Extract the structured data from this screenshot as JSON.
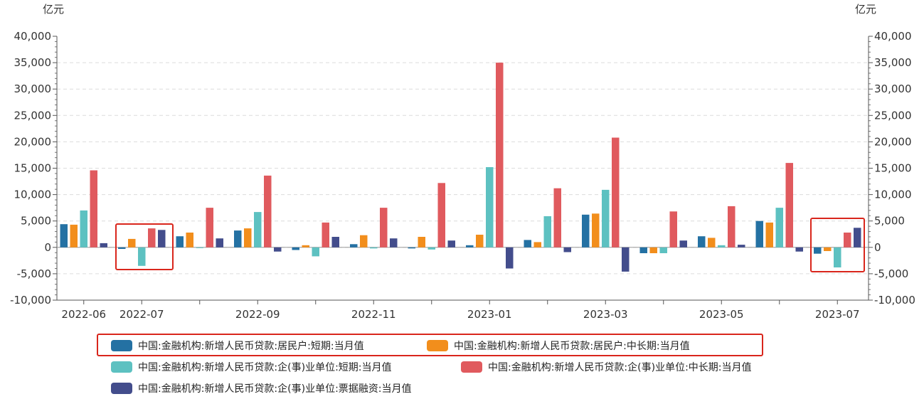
{
  "chart_data": {
    "type": "bar",
    "y_unit_left": "亿元",
    "y_unit_right": "亿元",
    "ylim": [
      -10000,
      40000
    ],
    "y_ticks": [
      "40,000",
      "35,000",
      "30,000",
      "25,000",
      "20,000",
      "15,000",
      "10,000",
      "5,000",
      "0",
      "-5,000",
      "-10,000"
    ],
    "x_tick_labels": [
      "2022-06",
      "2022-07",
      "2022-09",
      "2022-11",
      "2023-01",
      "2023-03",
      "2023-05",
      "2023-07"
    ],
    "categories": [
      "2022-06",
      "2022-07",
      "2022-08",
      "2022-09",
      "2022-10",
      "2022-11",
      "2022-12",
      "2023-01",
      "2023-02",
      "2023-03",
      "2023-04",
      "2023-05",
      "2023-06",
      "2023-07"
    ],
    "grid": "horizontal-dashed",
    "legend_position": "bottom",
    "series": [
      {
        "name": "中国:金融机构:新增人民币贷款:居民户:短期:当月值",
        "color": "#2471a3",
        "values": [
          4400,
          -300,
          2100,
          3200,
          -500,
          600,
          -200,
          400,
          1400,
          6200,
          -1100,
          2100,
          5000,
          -1200
        ]
      },
      {
        "name": "中国:金融机构:新增人民币贷款:居民户:中长期:当月值",
        "color": "#f28e1c",
        "values": [
          4300,
          1600,
          2800,
          3600,
          400,
          2300,
          2000,
          2400,
          1000,
          6400,
          -1100,
          1800,
          4700,
          -700
        ]
      },
      {
        "name": "中国:金融机构:新增人民币贷款:企(事)业单位:短期:当月值",
        "color": "#5dc1c1",
        "values": [
          7000,
          -3500,
          -100,
          6700,
          -1700,
          -200,
          -400,
          15200,
          5900,
          10900,
          -1100,
          400,
          7500,
          -3800
        ]
      },
      {
        "name": "中国:金融机构:新增人民币贷款:企(事)业单位:中长期:当月值",
        "color": "#e05a5e",
        "values": [
          14600,
          3600,
          7500,
          13600,
          4700,
          7500,
          12200,
          35000,
          11200,
          20800,
          6800,
          7800,
          16000,
          2800
        ]
      },
      {
        "name": "中国:金融机构:新增人民币贷款:企(事)业单位:票据融资:当月值",
        "color": "#434d8c",
        "values": [
          800,
          3300,
          1700,
          -800,
          2000,
          1700,
          1300,
          -4000,
          -900,
          -4600,
          1300,
          500,
          -800,
          3700
        ]
      }
    ]
  }
}
